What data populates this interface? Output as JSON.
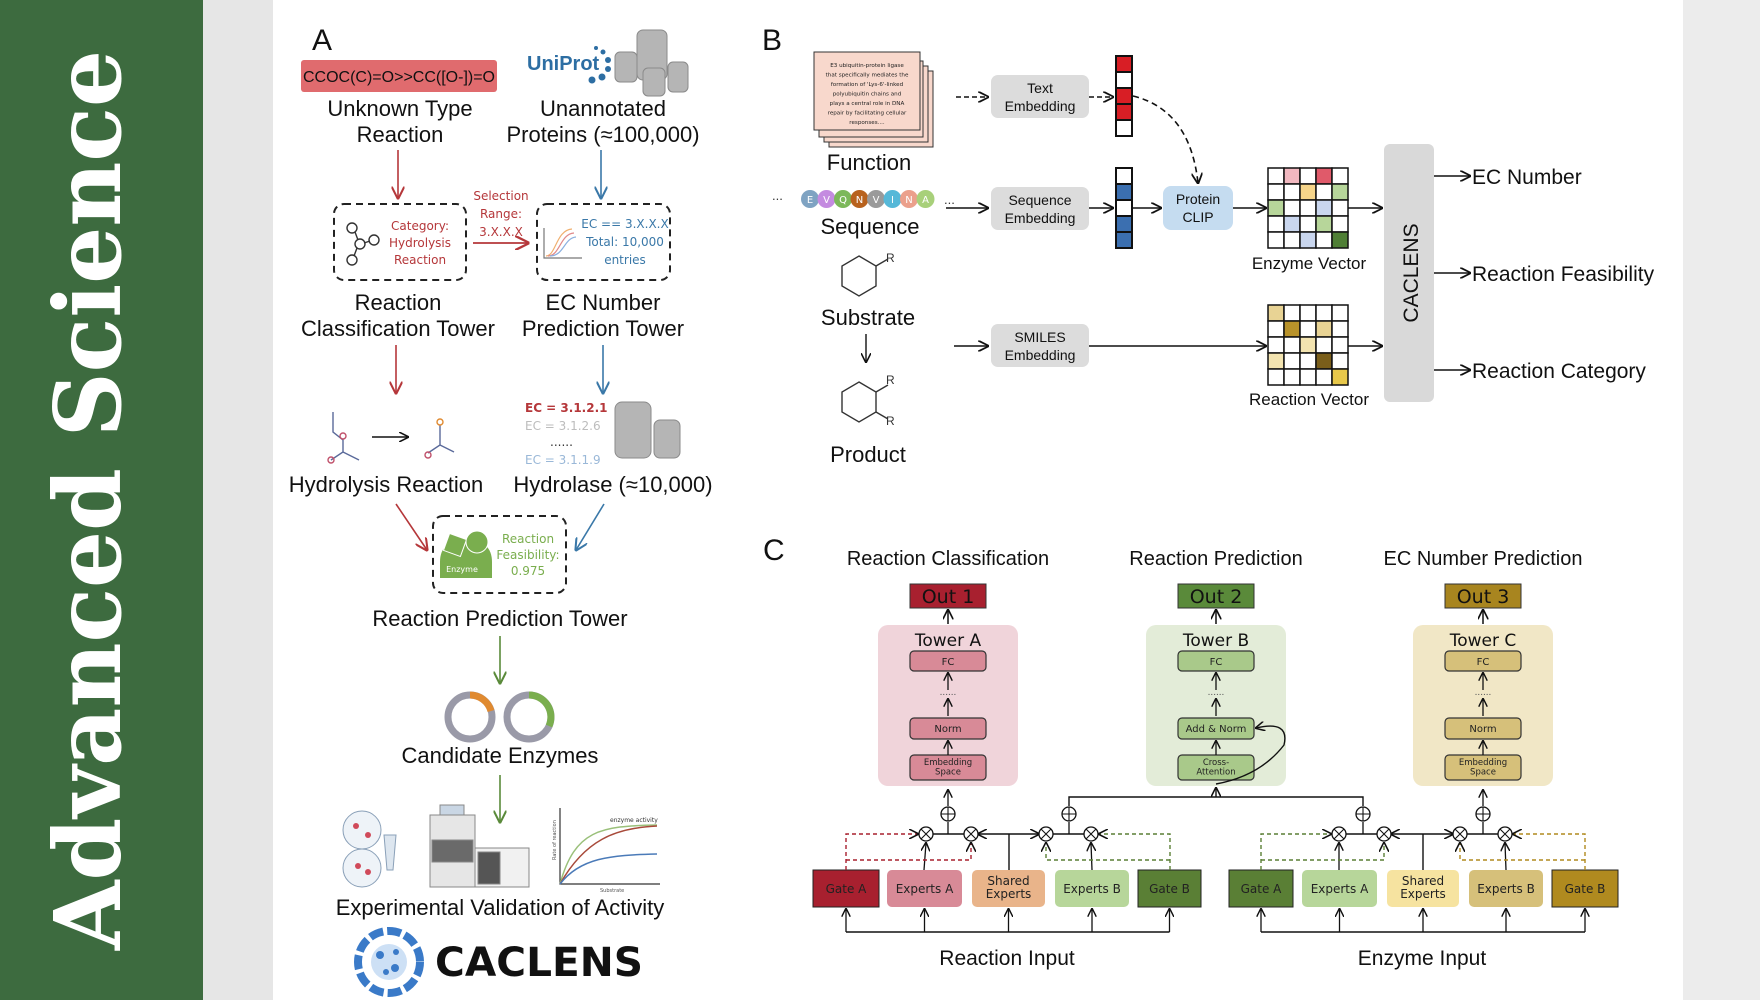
{
  "sidebar": {
    "title": "Advanced Science",
    "color": "#3d6b3f"
  },
  "panelA": {
    "letter": "A",
    "smiles": "CCOC(C)=O>>CC([O-])=O",
    "uniprot_logo": "UniProt",
    "unknown_reaction": [
      "Unknown Type",
      "Reaction"
    ],
    "unannotated": [
      "Unannotated",
      "Proteins (≈100,000)"
    ],
    "category": [
      "Category:",
      "Hydrolysis",
      "Reaction"
    ],
    "selection": [
      "Selection",
      "Range:",
      "3.X.X.X"
    ],
    "ec_filter": [
      "EC == 3.X.X.X",
      "Total: 10,000",
      "entries"
    ],
    "rct_tower": [
      "Reaction",
      "Classification Tower"
    ],
    "ecp_tower": [
      "EC Number",
      "Prediction Tower"
    ],
    "hydrolysis": "Hydrolysis Reaction",
    "ec_list": [
      "EC = 3.1.2.1",
      "EC = 3.1.2.6",
      "......",
      "EC = 3.1.1.9"
    ],
    "hydrolase": "Hydrolase (≈10,000)",
    "enzyme_label": "Enzyme",
    "feasibility": [
      "Reaction",
      "Feasibility:",
      "0.975"
    ],
    "rpt_tower": "Reaction Prediction Tower",
    "candidates": "Candidate Enzymes",
    "chart_title": "enzyme activity",
    "chart_ylabel": "Rate of reaction",
    "chart_xlabel": "Substrate",
    "validation": "Experimental Validation of Activity",
    "logo_text": "CACLENS"
  },
  "panelB": {
    "letter": "B",
    "function_text": [
      "E3 ubiquitin-protein ligase",
      "that specifically mediates the",
      "formation of 'Lys-6'-linked",
      "polyubiquitin chains and",
      "plays a central role in DNA",
      "repair by facilitating cellular",
      "responses...."
    ],
    "function": "Function",
    "residues": [
      {
        "aa": "E",
        "color": "#7fa3c2"
      },
      {
        "aa": "V",
        "color": "#c48be0"
      },
      {
        "aa": "Q",
        "color": "#7cb85a"
      },
      {
        "aa": "N",
        "color": "#b8621e"
      },
      {
        "aa": "V",
        "color": "#9a9a9a"
      },
      {
        "aa": "I",
        "color": "#56b8d8"
      },
      {
        "aa": "N",
        "color": "#eba08c"
      },
      {
        "aa": "A",
        "color": "#a8d07a"
      }
    ],
    "ellipsis": "...",
    "sequence": "Sequence",
    "substrate": "Substrate",
    "product": "Product",
    "r_group": "R",
    "text_embedding": [
      "Text",
      "Embedding"
    ],
    "sequence_embedding": [
      "Sequence",
      "Embedding"
    ],
    "smiles_embedding": [
      "SMILES",
      "Embedding"
    ],
    "protein_clip": [
      "Protein",
      "CLIP"
    ],
    "text_vector": [
      "#d81e25",
      "#ffffff",
      "#d81e25",
      "#d81e25",
      "#ffffff"
    ],
    "seq_vector": [
      "#ffffff",
      "#3b6fb0",
      "#ffffff",
      "#3b6fb0",
      "#3b6fb0"
    ],
    "enzyme_vector_label": "Enzyme Vector",
    "enzyme_grid": [
      [
        "#ffffff",
        "#f2b8c0",
        "#ffffff",
        "#e05a6a",
        "#ffffff"
      ],
      [
        "#ffffff",
        "#ffffff",
        "#f6d58a",
        "#ffffff",
        "#b7d69a"
      ],
      [
        "#b7d69a",
        "#ffffff",
        "#ffffff",
        "#c9d6ee",
        "#ffffff"
      ],
      [
        "#ffffff",
        "#c9d6ee",
        "#ffffff",
        "#b7d69a",
        "#ffffff"
      ],
      [
        "#ffffff",
        "#ffffff",
        "#c9d6ee",
        "#ffffff",
        "#4f7f35"
      ]
    ],
    "reaction_vector_label": "Reaction Vector",
    "reaction_grid": [
      [
        "#e8d394",
        "#ffffff",
        "#ffffff",
        "#ffffff",
        "#ffffff"
      ],
      [
        "#ffffff",
        "#b8922a",
        "#ffffff",
        "#e8d394",
        "#ffffff"
      ],
      [
        "#ffffff",
        "#ffffff",
        "#f3e4b0",
        "#ffffff",
        "#ffffff"
      ],
      [
        "#f3e4b0",
        "#ffffff",
        "#ffffff",
        "#7a5e1a",
        "#ffffff"
      ],
      [
        "#ffffff",
        "#ffffff",
        "#ffffff",
        "#ffffff",
        "#e8c84a"
      ]
    ],
    "caclens": "CACLENS",
    "outputs": [
      "EC Number",
      "Reaction Feasibility",
      "Reaction Category"
    ]
  },
  "panelC": {
    "letter": "C",
    "tasks": [
      {
        "title": "Reaction Classification",
        "out": "Out 1",
        "tower": "Tower A",
        "layers": [
          "FC",
          "Norm",
          "Embedding Space"
        ],
        "out_color": "#a8202f",
        "bg": "#f0d4da",
        "box": "#d88a97"
      },
      {
        "title": "Reaction Prediction",
        "out": "Out 2",
        "tower": "Tower B",
        "layers": [
          "FC",
          "Add & Norm",
          "Cross-Attention"
        ],
        "out_color": "#5a8a3a",
        "bg": "#e3ecd8",
        "box": "#a9c98a"
      },
      {
        "title": "EC Number Prediction",
        "out": "Out 3",
        "tower": "Tower C",
        "layers": [
          "FC",
          "Norm",
          "Embedding Space"
        ],
        "out_color": "#a8851f",
        "bg": "#f1e7c6",
        "box": "#d6c07a"
      }
    ],
    "dots": "......",
    "reaction_modules": [
      {
        "label": "Gate A",
        "color": "#a8202f"
      },
      {
        "label": "Experts A",
        "color": "#d88a97"
      },
      {
        "label": "Shared Experts",
        "color": "#e9b48a"
      },
      {
        "label": "Experts B",
        "color": "#b7d69a"
      },
      {
        "label": "Gate B",
        "color": "#5a7f35"
      }
    ],
    "enzyme_modules": [
      {
        "label": "Gate A",
        "color": "#5a7f35"
      },
      {
        "label": "Experts A",
        "color": "#b7d69a"
      },
      {
        "label": "Shared Experts",
        "color": "#f6e3a0"
      },
      {
        "label": "Experts B",
        "color": "#d6c07a"
      },
      {
        "label": "Gate B",
        "color": "#b08a1f"
      }
    ],
    "reaction_input": "Reaction Input",
    "enzyme_input": "Enzyme Input"
  }
}
